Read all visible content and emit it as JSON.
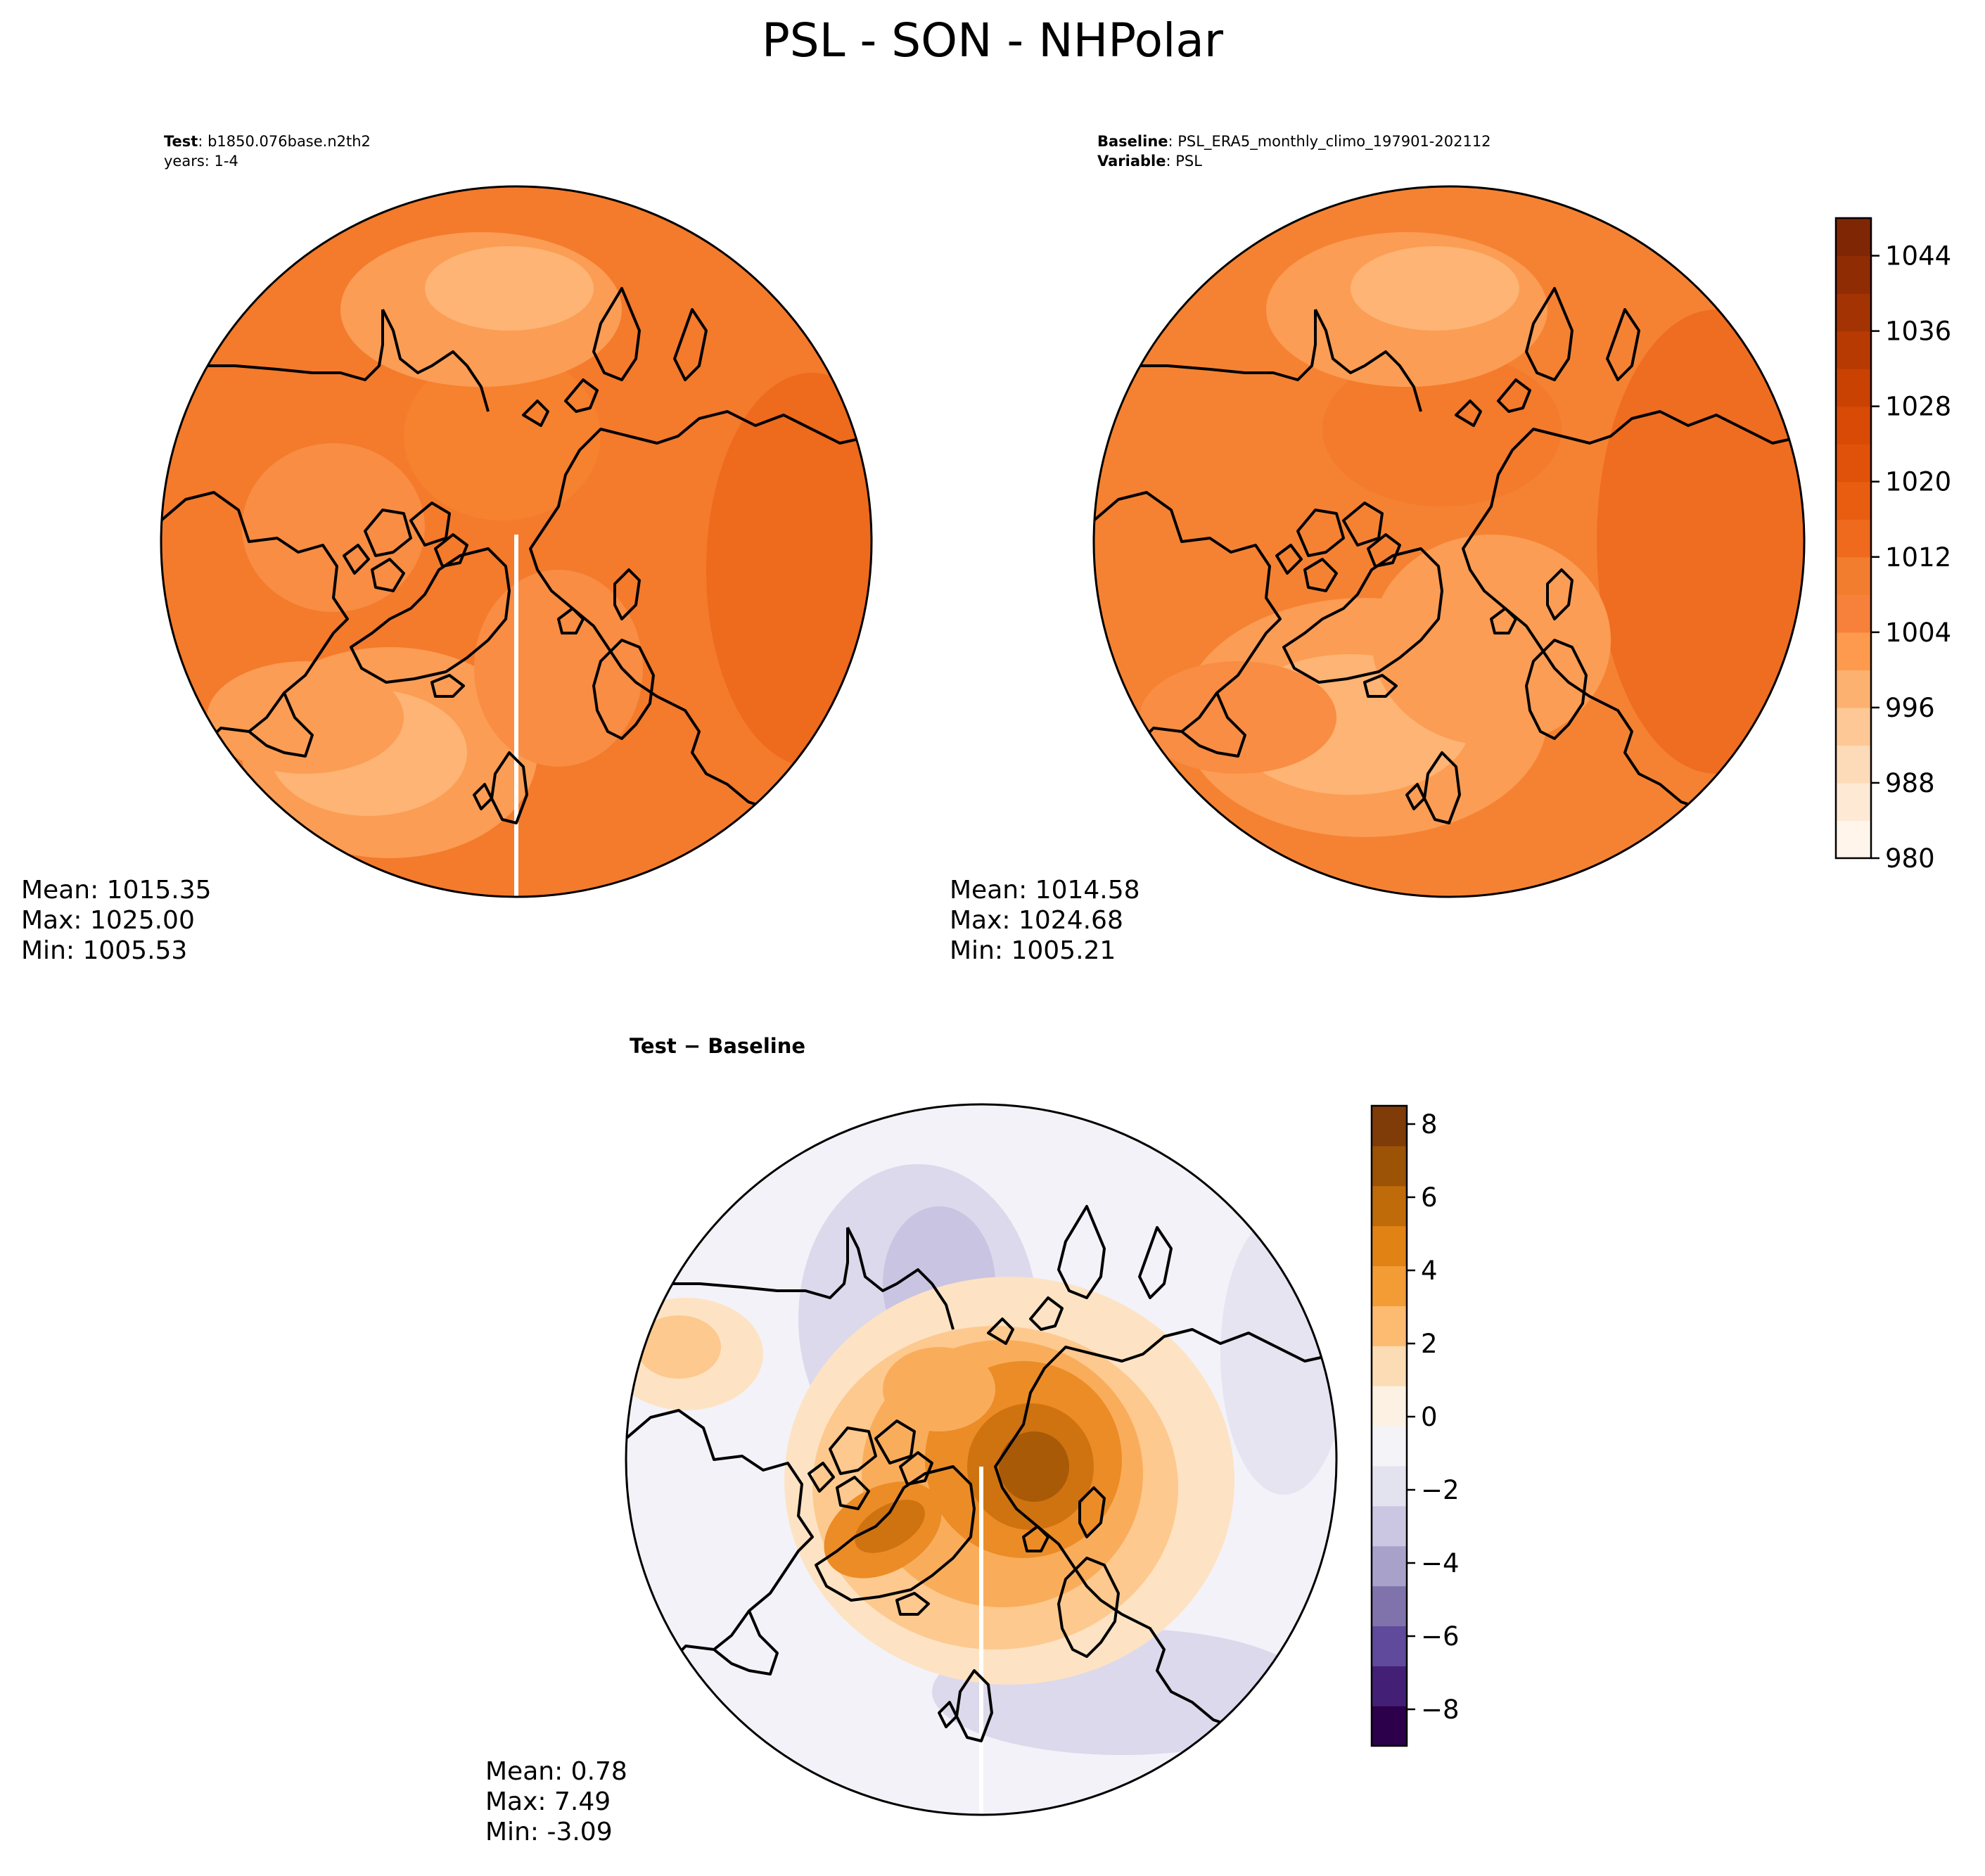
{
  "figure_title": "PSL - SON - NHPolar",
  "panels": {
    "test": {
      "label_bold": "Test",
      "label_value": ": b1850.076base.n2th2",
      "years_line": "years: 1-4",
      "stats": {
        "mean": "Mean: 1015.35",
        "max": "Max: 1025.00",
        "min": "Min: 1005.53"
      }
    },
    "baseline": {
      "label_bold": "Baseline",
      "label_value": ": PSL_ERA5_monthly_climo_197901-202112",
      "variable_bold": "Variable",
      "variable_value": ": PSL",
      "stats": {
        "mean": "Mean: 1014.58",
        "max": "Max: 1024.68",
        "min": "Min: 1005.21"
      }
    },
    "difference": {
      "title": "Test − Baseline",
      "stats": {
        "mean": "Mean:  0.78",
        "max": "Max:  7.49",
        "min": "Min: -3.09"
      }
    }
  },
  "chart_data": [
    {
      "type": "heatmap",
      "projection": "north-polar-stereographic",
      "title": "Test: b1850.076base.n2th2 (years: 1-4)",
      "variable": "PSL",
      "season": "SON",
      "mean": 1015.35,
      "max": 1025.0,
      "min": 1005.53,
      "colormap": "Oranges",
      "shared_colorbar": true
    },
    {
      "type": "heatmap",
      "projection": "north-polar-stereographic",
      "title": "Baseline: PSL_ERA5_monthly_climo_197901-202112",
      "variable": "PSL",
      "season": "SON",
      "mean": 1014.58,
      "max": 1024.68,
      "min": 1005.21,
      "colormap": "Oranges",
      "colorbar": {
        "range": [
          980,
          1048
        ],
        "levels": [
          980,
          984,
          988,
          992,
          996,
          1000,
          1004,
          1008,
          1012,
          1016,
          1020,
          1024,
          1028,
          1032,
          1036,
          1040,
          1044,
          1048
        ],
        "ticks": [
          980,
          988,
          996,
          1004,
          1012,
          1020,
          1028,
          1036,
          1044
        ],
        "tick_labels": [
          "980",
          "988",
          "996",
          "1004",
          "1012",
          "1020",
          "1028",
          "1036",
          "1044"
        ],
        "colors": [
          "#fff5eb",
          "#fee9d5",
          "#fddbb8",
          "#fdc895",
          "#fdb170",
          "#fd9a4e",
          "#f7813a",
          "#f37d2f",
          "#ef6a1c",
          "#e85d10",
          "#e05209",
          "#d84a05",
          "#c94202",
          "#b73a02",
          "#a33303",
          "#8f2c04",
          "#7f2704"
        ]
      }
    },
    {
      "type": "heatmap",
      "projection": "north-polar-stereographic",
      "title": "Test − Baseline",
      "variable": "PSL",
      "season": "SON",
      "mean": 0.78,
      "max": 7.49,
      "min": -3.09,
      "colormap": "PuOr_r",
      "colorbar": {
        "range": [
          -9,
          8.5
        ],
        "ticks": [
          -8,
          -6,
          -4,
          -2,
          0,
          2,
          4,
          6,
          8
        ],
        "tick_labels": [
          "−8",
          "−6",
          "−4",
          "−2",
          "0",
          "2",
          "4",
          "6",
          "8"
        ],
        "colors": [
          "#2d004b",
          "#432076",
          "#5f4a9b",
          "#8073ac",
          "#a8a2cb",
          "#cbc6e2",
          "#e3e2ef",
          "#f4f3f7",
          "#fcf1e3",
          "#fcdcb4",
          "#fdbb72",
          "#f39c35",
          "#e08214",
          "#c06b0a",
          "#9c5305",
          "#7f3b08"
        ]
      }
    }
  ],
  "colors": {
    "test_base": "#f47a2c",
    "baseline_base": "#f58232",
    "diff_base": "#f3f2f8",
    "coastline": "#000000"
  }
}
